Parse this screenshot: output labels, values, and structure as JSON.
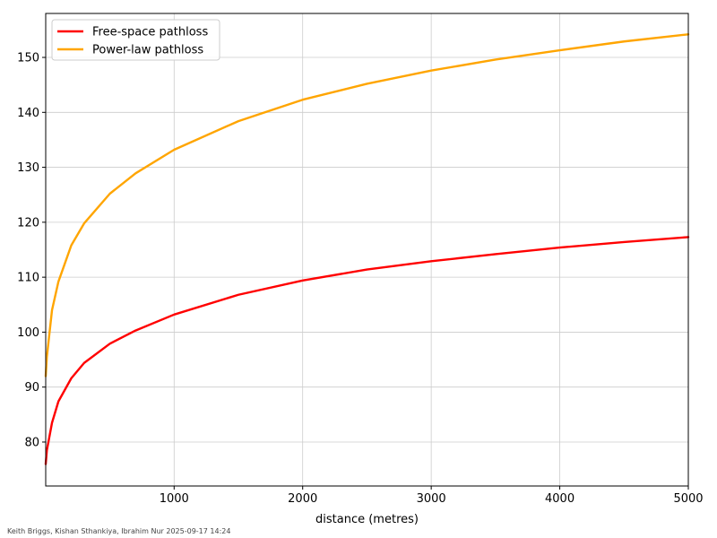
{
  "chart_data": {
    "type": "line",
    "title": "",
    "xlabel": "distance (metres)",
    "ylabel": "",
    "xlim": [
      1,
      5000
    ],
    "ylim": [
      72,
      158
    ],
    "xticks": [
      1000,
      2000,
      3000,
      4000,
      5000
    ],
    "yticks": [
      80,
      90,
      100,
      110,
      120,
      130,
      140,
      150
    ],
    "grid": true,
    "legend_position": "top-left",
    "series": [
      {
        "name": "Free-space pathloss",
        "color": "#ff0000",
        "x": [
          1,
          10,
          50,
          100,
          200,
          300,
          500,
          700,
          1000,
          1500,
          2000,
          2500,
          3000,
          3500,
          4000,
          4500,
          5000
        ],
        "y": [
          76,
          78.5,
          83.5,
          87.4,
          91.6,
          94.4,
          97.9,
          100.3,
          103.2,
          106.8,
          109.4,
          111.4,
          112.9,
          114.2,
          115.4,
          116.4,
          117.3
        ]
      },
      {
        "name": "Power-law pathloss",
        "color": "#ffa500",
        "x": [
          1,
          10,
          50,
          100,
          200,
          300,
          500,
          700,
          1000,
          1500,
          2000,
          2500,
          3000,
          3500,
          4000,
          4500,
          5000
        ],
        "y": [
          92,
          95.5,
          104,
          109.2,
          115.8,
          119.8,
          125.2,
          128.9,
          133.2,
          138.4,
          142.3,
          145.2,
          147.6,
          149.6,
          151.3,
          152.9,
          154.2
        ]
      }
    ]
  },
  "credit": "Keith Briggs, Kishan Sthankiya, Ibrahim Nur 2025-09-17 14:24"
}
